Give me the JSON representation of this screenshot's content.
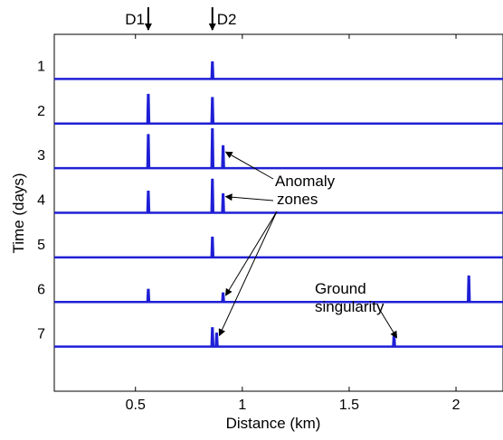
{
  "chart_data": {
    "type": "line",
    "xlabel": "Distance (km)",
    "ylabel": "Time (days)",
    "xlim": [
      0.12,
      2.22
    ],
    "ylim": [
      0,
      8
    ],
    "y_inverted": true,
    "xticks": [
      0.5,
      1,
      1.5,
      2
    ],
    "xtick_labels": [
      "0.5",
      "1",
      "1.5",
      "2"
    ],
    "yticks": [
      1,
      2,
      3,
      4,
      5,
      6,
      7
    ],
    "ytick_labels": [
      "1",
      "2",
      "3",
      "4",
      "5",
      "6",
      "7"
    ],
    "grid": false,
    "series_color": "#1f1fd6",
    "baseline_amplitude": 0.0,
    "series": [
      {
        "day": 1,
        "peaks": [
          {
            "x": 0.86,
            "amp": 0.38
          }
        ]
      },
      {
        "day": 2,
        "peaks": [
          {
            "x": 0.56,
            "amp": 0.65
          },
          {
            "x": 0.86,
            "amp": 0.58
          }
        ]
      },
      {
        "day": 3,
        "peaks": [
          {
            "x": 0.56,
            "amp": 0.75
          },
          {
            "x": 0.86,
            "amp": 0.88
          },
          {
            "x": 0.91,
            "amp": 0.5
          }
        ]
      },
      {
        "day": 4,
        "peaks": [
          {
            "x": 0.56,
            "amp": 0.48
          },
          {
            "x": 0.86,
            "amp": 0.75
          },
          {
            "x": 0.91,
            "amp": 0.42
          }
        ]
      },
      {
        "day": 5,
        "peaks": [
          {
            "x": 0.86,
            "amp": 0.45
          }
        ]
      },
      {
        "day": 6,
        "peaks": [
          {
            "x": 0.56,
            "amp": 0.28
          },
          {
            "x": 0.91,
            "amp": 0.2
          },
          {
            "x": 2.06,
            "amp": 0.58
          }
        ]
      },
      {
        "day": 7,
        "peaks": [
          {
            "x": 0.86,
            "amp": 0.42
          },
          {
            "x": 0.88,
            "amp": 0.3
          },
          {
            "x": 1.71,
            "amp": 0.28
          }
        ]
      }
    ],
    "markers": [
      {
        "label": "D1",
        "x": 0.56
      },
      {
        "label": "D2",
        "x": 0.86
      }
    ],
    "annotations": [
      {
        "name": "anomaly",
        "lines": [
          "Anomaly",
          "zones"
        ],
        "targets": [
          {
            "x": 0.91,
            "day": 2.8
          },
          {
            "x": 0.91,
            "day": 3.8
          },
          {
            "x": 0.91,
            "day": 5.85
          },
          {
            "x": 0.88,
            "day": 6.75
          }
        ]
      },
      {
        "name": "ground",
        "lines": [
          "Ground",
          "singularity"
        ],
        "targets": [
          {
            "x": 1.71,
            "day": 6.8
          }
        ]
      }
    ]
  }
}
